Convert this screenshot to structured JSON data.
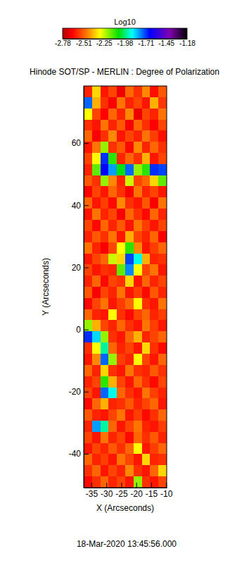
{
  "chart_data": {
    "type": "heatmap",
    "title": "Hinode SOT/SP - MERLIN : Degree of Polarization",
    "xlabel": "X (Arcseconds)",
    "ylabel": "Y (Arcseconds)",
    "annotation": "18-Mar-2020 13:45:56.000",
    "xlim": [
      -37.6,
      -9.8
    ],
    "ylim": [
      -50.9,
      78.4
    ],
    "xticks": [
      -35,
      -30,
      -25,
      -20,
      -15,
      -10
    ],
    "yticks": [
      -40,
      -20,
      0,
      20,
      40,
      60
    ],
    "colorbar": {
      "label": "Log10",
      "range": [
        -2.78,
        -1.18
      ],
      "ticks": [
        -2.78,
        -2.51,
        -2.25,
        -1.98,
        -1.71,
        -1.45,
        -1.18
      ]
    },
    "x": [
      -36.21,
      -33.43,
      -30.65,
      -27.87,
      -25.09,
      -22.31,
      -19.53,
      -16.75,
      -13.97,
      -11.19
    ],
    "y": [
      76.6,
      73.0,
      69.4,
      65.8,
      62.2,
      58.6,
      55.0,
      51.5,
      47.9,
      44.3,
      40.7,
      37.1,
      33.5,
      29.9,
      26.3,
      22.7,
      19.1,
      15.5,
      12.0,
      8.4,
      4.8,
      1.2,
      -2.4,
      -6.0,
      -9.6,
      -13.2,
      -16.8,
      -20.4,
      -24.0,
      -27.6,
      -31.2,
      -34.8,
      -38.3,
      -41.9,
      -45.5,
      -49.1
    ],
    "z": [
      [
        -2.6,
        -2.35,
        -2.62,
        -2.55,
        -2.68,
        -2.5,
        -2.58,
        -2.45,
        -2.63,
        -2.52
      ],
      [
        -1.75,
        -2.4,
        -2.58,
        -2.66,
        -2.48,
        -2.6,
        -2.55,
        -2.62,
        -2.4,
        -2.57
      ],
      [
        -2.3,
        -2.55,
        -2.65,
        -2.5,
        -2.6,
        -2.45,
        -2.68,
        -2.55,
        -2.6,
        -2.48
      ],
      [
        -2.58,
        -2.62,
        -2.48,
        -2.6,
        -2.52,
        -2.66,
        -2.5,
        -2.58,
        -2.65,
        -2.55
      ],
      [
        -2.5,
        -2.66,
        -2.58,
        -2.45,
        -2.62,
        -2.55,
        -2.6,
        -2.48,
        -2.56,
        -2.63
      ],
      [
        -2.62,
        -2.48,
        -2.2,
        -2.58,
        -2.52,
        -2.64,
        -2.45,
        -2.6,
        -2.5,
        -2.58
      ],
      [
        -2.55,
        -2.3,
        -1.7,
        -2.1,
        -2.6,
        -2.5,
        -2.58,
        -2.4,
        -2.62,
        -2.55
      ],
      [
        -2.6,
        -2.15,
        -1.65,
        -1.8,
        -2.05,
        -1.75,
        -2.2,
        -2.1,
        -1.7,
        -1.72
      ],
      [
        -2.52,
        -2.58,
        -2.2,
        -2.45,
        -2.6,
        -2.25,
        -2.55,
        -2.5,
        -2.35,
        -2.15
      ],
      [
        -2.65,
        -2.55,
        -2.62,
        -2.5,
        -2.58,
        -2.66,
        -2.48,
        -2.6,
        -2.55,
        -2.62
      ],
      [
        -2.5,
        -2.62,
        -2.56,
        -2.64,
        -2.45,
        -2.58,
        -2.62,
        -2.52,
        -2.66,
        -2.48
      ],
      [
        -2.62,
        -2.48,
        -2.6,
        -2.55,
        -2.66,
        -2.5,
        -2.58,
        -2.64,
        -2.5,
        -2.6
      ],
      [
        -2.55,
        -2.64,
        -2.5,
        -2.6,
        -2.52,
        -2.62,
        -2.48,
        -2.56,
        -2.62,
        -2.55
      ],
      [
        -2.6,
        -2.52,
        -2.58,
        -2.48,
        -2.62,
        -2.4,
        -2.55,
        -2.6,
        -2.5,
        -2.66
      ],
      [
        -2.48,
        -2.6,
        -2.66,
        -2.55,
        -2.3,
        -2.1,
        -2.45,
        -2.62,
        -2.56,
        -2.5
      ],
      [
        -2.62,
        -2.55,
        -2.5,
        -2.25,
        -2.35,
        -1.72,
        -1.9,
        -2.4,
        -2.6,
        -2.58
      ],
      [
        -2.55,
        -2.62,
        -2.58,
        -2.6,
        -2.15,
        -1.78,
        -2.3,
        -2.55,
        -2.48,
        -2.62
      ],
      [
        -2.6,
        -2.5,
        -2.64,
        -2.55,
        -2.58,
        -2.35,
        -2.62,
        -2.5,
        -2.6,
        -2.55
      ],
      [
        -2.52,
        -2.66,
        -2.55,
        -2.6,
        -2.48,
        -2.62,
        -2.56,
        -2.64,
        -2.52,
        -2.6
      ],
      [
        -2.64,
        -2.55,
        -2.48,
        -2.62,
        -2.56,
        -2.5,
        -2.3,
        -2.58,
        -2.62,
        -2.48
      ],
      [
        -2.5,
        -2.6,
        -2.62,
        -2.3,
        -2.58,
        -2.64,
        -2.55,
        -2.5,
        -2.6,
        -2.56
      ],
      [
        -2.2,
        -2.4,
        -2.55,
        -2.6,
        -2.5,
        -2.58,
        -2.62,
        -2.48,
        -2.56,
        -2.62
      ],
      [
        -1.7,
        -1.85,
        -2.2,
        -2.58,
        -2.62,
        -2.5,
        -2.4,
        -2.6,
        -2.55,
        -2.5
      ],
      [
        -2.58,
        -2.3,
        -1.95,
        -2.5,
        -2.6,
        -2.55,
        -2.62,
        -2.35,
        -2.58,
        -2.64
      ],
      [
        -2.62,
        -2.45,
        -1.75,
        -2.2,
        -2.56,
        -2.6,
        -2.3,
        -2.55,
        -2.62,
        -2.5
      ],
      [
        -2.5,
        -2.6,
        -2.35,
        -2.58,
        -2.62,
        -2.48,
        -2.58,
        -2.6,
        -2.52,
        -2.58
      ],
      [
        -2.6,
        -2.55,
        -2.1,
        -2.4,
        -2.55,
        -2.62,
        -2.5,
        -2.58,
        -2.64,
        -2.55
      ],
      [
        -2.55,
        -2.62,
        -1.75,
        -1.9,
        -2.5,
        -2.58,
        -2.62,
        -2.48,
        -2.56,
        -2.6
      ],
      [
        -2.64,
        -2.5,
        -2.4,
        -2.6,
        -2.58,
        -2.52,
        -2.6,
        -2.55,
        -2.5,
        -2.62
      ],
      [
        -2.52,
        -2.6,
        -2.62,
        -2.55,
        -2.48,
        -2.62,
        -2.56,
        -2.64,
        -2.58,
        -2.5
      ],
      [
        -2.6,
        -1.8,
        -1.95,
        -2.5,
        -2.62,
        -2.55,
        -2.48,
        -2.6,
        -2.62,
        -2.56
      ],
      [
        -2.55,
        -2.62,
        -2.48,
        -2.6,
        -2.55,
        -2.64,
        -2.5,
        -2.58,
        -2.52,
        -2.6
      ],
      [
        -2.62,
        -2.55,
        -2.6,
        -2.52,
        -2.58,
        -2.5,
        -2.3,
        -2.62,
        -2.56,
        -2.5
      ],
      [
        -2.5,
        -2.6,
        -2.56,
        -2.62,
        -2.48,
        -2.55,
        -2.62,
        -2.35,
        -2.6,
        -2.58
      ],
      [
        -2.58,
        -2.5,
        -2.62,
        -2.55,
        -2.6,
        -2.45,
        -2.58,
        -2.62,
        -2.5,
        -2.35
      ],
      [
        -2.64,
        -2.58,
        -2.5,
        -2.6,
        -2.55,
        -2.62,
        -2.2,
        -2.58,
        -2.62,
        -2.55
      ]
    ]
  }
}
